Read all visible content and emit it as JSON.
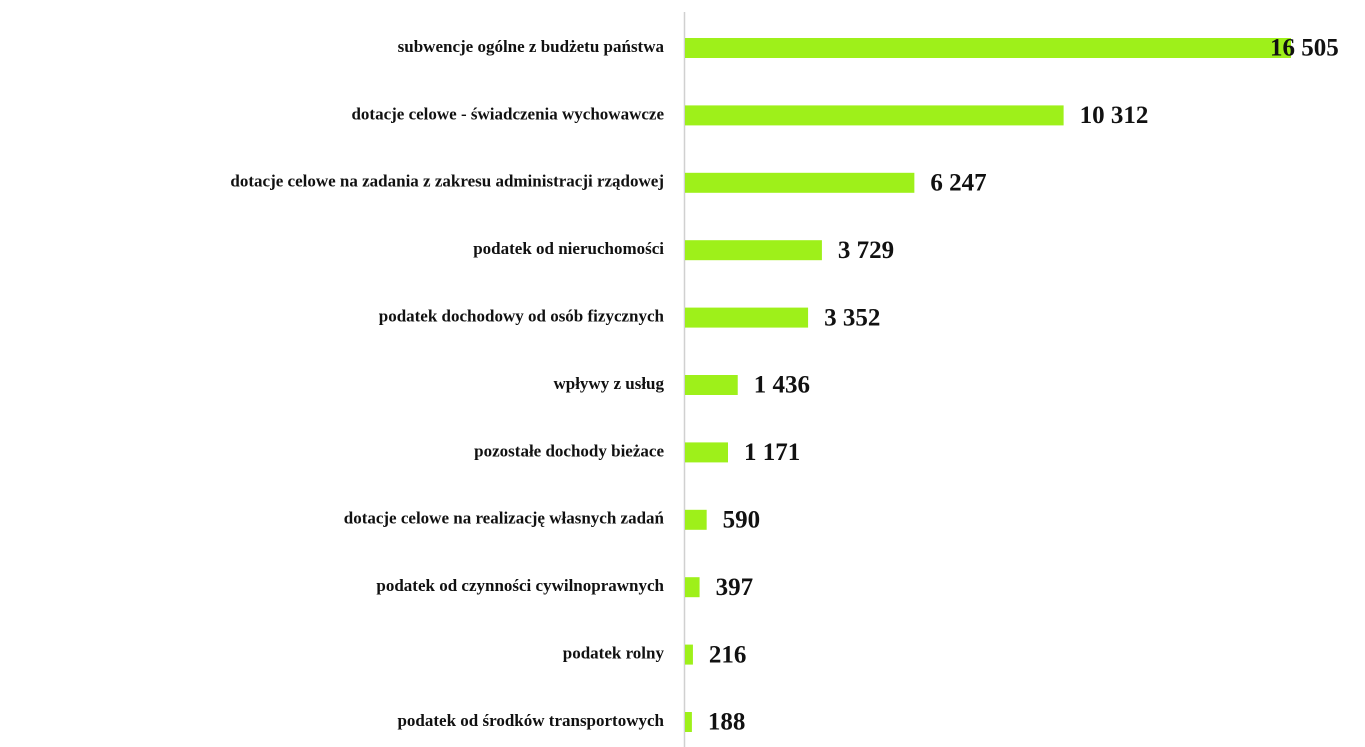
{
  "chart_data": {
    "type": "barh",
    "categories": [
      "subwencje ogólne z budżetu państwa",
      "dotacje celowe - świadczenia wychowawcze",
      "dotacje celowe na zadania z zakresu administracji rządowej",
      "podatek od nieruchomości",
      "podatek dochodowy od osób fizycznych",
      "wpływy z usług",
      "pozostałe dochody bieżace",
      "dotacje celowe na realizację własnych zadań",
      "podatek od czynności cywilnoprawnych",
      "podatek rolny",
      "podatek od środków transportowych"
    ],
    "values": [
      16505,
      10312,
      6247,
      3729,
      3352,
      1436,
      1171,
      590,
      397,
      216,
      188
    ],
    "value_labels": [
      "16 505",
      "10 312",
      "6 247",
      "3 729",
      "3 352",
      "1 436",
      "1 171",
      "590",
      "397",
      "216",
      "188"
    ],
    "color": "#9ef01a"
  }
}
